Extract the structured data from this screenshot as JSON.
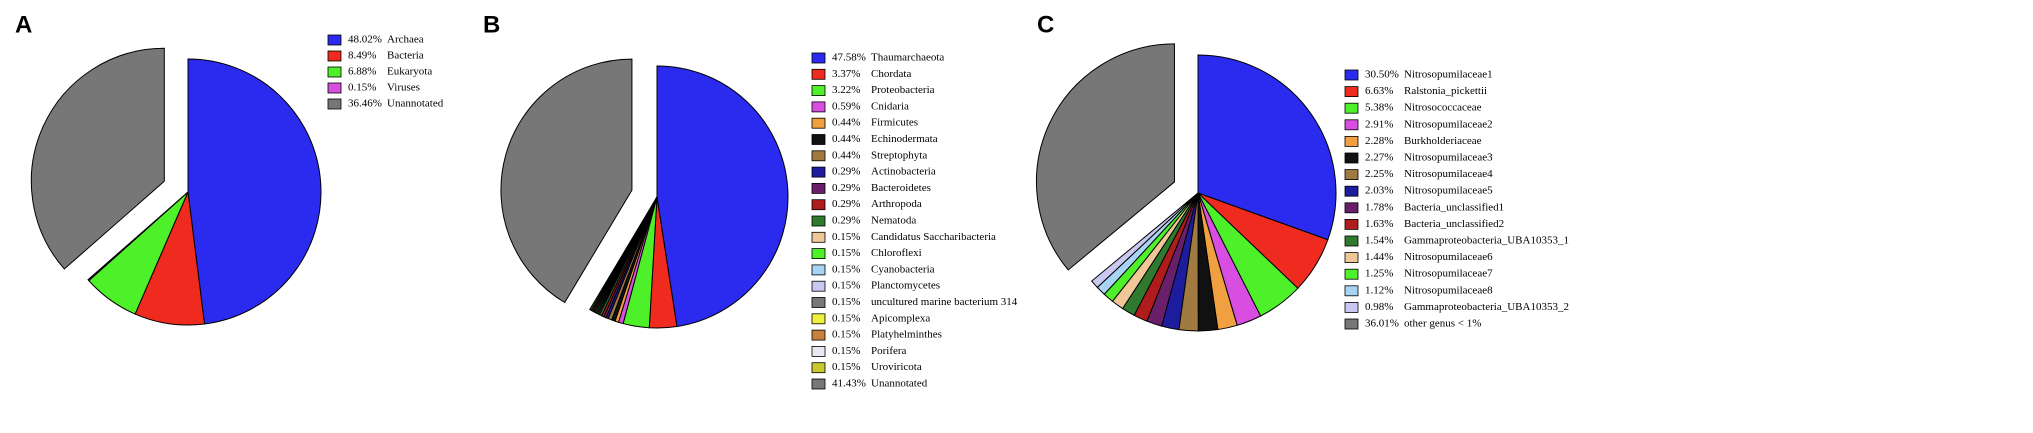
{
  "chart_data": [
    {
      "type": "pie",
      "label": "A",
      "categories": [
        "Archaea",
        "Bacteria",
        "Eukaryota",
        "Viruses",
        "Unannotated"
      ],
      "values": [
        48.02,
        8.49,
        6.88,
        0.15,
        36.46
      ],
      "value_labels": [
        "48.02%",
        "8.49%",
        "6.88%",
        "0.15%",
        "36.46%"
      ],
      "colors": [
        "#2b2bf0",
        "#ef2a1f",
        "#4ef02a",
        "#d84ee0",
        "#777777"
      ]
    },
    {
      "type": "pie",
      "label": "B",
      "categories": [
        "Thaumarchaeota",
        "Chordata",
        "Proteobacteria",
        "Cnidaria",
        "Firmicutes",
        "Echinodermata",
        "Streptophyta",
        "Actinobacteria",
        "Bacteroidetes",
        "Arthropoda",
        "Nematoda",
        "Candidatus Saccharibacteria",
        "Chloroflexi",
        "Cyanobacteria",
        "Planctomycetes",
        "uncultured marine bacterium 314",
        "Apicomplexa",
        "Platyhelminthes",
        "Porifera",
        "Uroviricota",
        "Unannotated"
      ],
      "values": [
        47.58,
        3.37,
        3.22,
        0.59,
        0.44,
        0.44,
        0.44,
        0.29,
        0.29,
        0.29,
        0.29,
        0.15,
        0.15,
        0.15,
        0.15,
        0.15,
        0.15,
        0.15,
        0.15,
        0.15,
        41.43
      ],
      "value_labels": [
        "47.58%",
        "3.37%",
        "3.22%",
        "0.59%",
        "0.44%",
        "0.44%",
        "0.44%",
        "0.29%",
        "0.29%",
        "0.29%",
        "0.29%",
        "0.15%",
        "0.15%",
        "0.15%",
        "0.15%",
        "0.15%",
        "0.15%",
        "0.15%",
        "0.15%",
        "0.15%",
        "41.43%"
      ],
      "colors": [
        "#2b2bf0",
        "#ef2a1f",
        "#4ef02a",
        "#d84ee0",
        "#f0a040",
        "#111111",
        "#a07a40",
        "#1c1c9c",
        "#6a1f6a",
        "#b01c1c",
        "#2f7a2f",
        "#f0c898",
        "#4ef02a",
        "#a8d4f4",
        "#c8c8f0",
        "#777777",
        "#f0f040",
        "#c8803c",
        "#e8e8f0",
        "#c8c830",
        "#777777"
      ]
    },
    {
      "type": "pie",
      "label": "C",
      "categories": [
        "Nitrosopumilaceae1",
        "Ralstonia_pickettii",
        "Nitrosococcaceae",
        "Nitrosopumilaceae2",
        "Burkholderiaceae",
        "Nitrosopumilaceae3",
        "Nitrosopumilaceae4",
        "Nitrosopumilaceae5",
        "Bacteria_unclassified1",
        "Bacteria_unclassified2",
        "Gammaproteobacteria_UBA10353_1",
        "Nitrosopumilaceae6",
        "Nitrosopumilaceae7",
        "Nitrosopumilaceae8",
        "Gammaproteobacteria_UBA10353_2",
        "other genus < 1%"
      ],
      "values": [
        30.5,
        6.63,
        5.38,
        2.91,
        2.28,
        2.27,
        2.25,
        2.03,
        1.78,
        1.63,
        1.54,
        1.44,
        1.25,
        1.12,
        0.98,
        36.01
      ],
      "value_labels": [
        "30.50%",
        "6.63%",
        "5.38%",
        "2.91%",
        "2.28%",
        "2.27%",
        "2.25%",
        "2.03%",
        "1.78%",
        "1.63%",
        "1.54%",
        "1.44%",
        "1.25%",
        "1.12%",
        "0.98%",
        "36.01%"
      ],
      "colors": [
        "#2b2bf0",
        "#ef2a1f",
        "#4ef02a",
        "#d84ee0",
        "#f0a040",
        "#111111",
        "#a07a40",
        "#1c1c9c",
        "#6a1f6a",
        "#b01c1c",
        "#2f7a2f",
        "#f0c898",
        "#4ef02a",
        "#a8d4f4",
        "#c8c8f0",
        "#777777"
      ]
    }
  ]
}
